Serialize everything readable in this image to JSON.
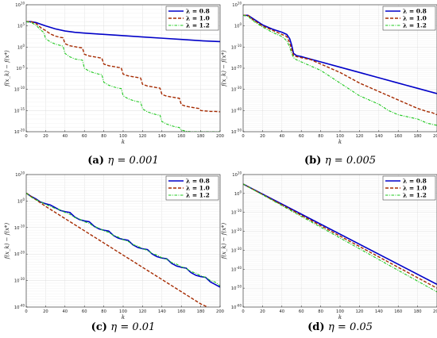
{
  "chart_data": [
    {
      "type": "line",
      "caption_label": "(a)",
      "caption_text": "η = 0.001",
      "xlabel": "k",
      "ylabel": "f(x_k) − f(x*)",
      "xlim": [
        0,
        200
      ],
      "ylim_exp": [
        -20,
        10
      ],
      "yscale": "log",
      "ytick_exps": [
        -20,
        -15,
        -10,
        -5,
        0,
        5,
        10
      ],
      "xticks": [
        0,
        20,
        40,
        60,
        80,
        100,
        120,
        140,
        160,
        180,
        200
      ],
      "grid": true,
      "legend": "top-right",
      "series": [
        {
          "name": "λ = 0.8",
          "style": "solid",
          "color": "#0000c8",
          "x": [
            0,
            5,
            10,
            15,
            20,
            30,
            40,
            50,
            60,
            80,
            100,
            120,
            140,
            160,
            180,
            200
          ],
          "log10_y": [
            6,
            6,
            5.8,
            5.4,
            5,
            4.3,
            3.8,
            3.5,
            3.3,
            3,
            2.7,
            2.4,
            2.1,
            1.8,
            1.5,
            1.3
          ]
        },
        {
          "name": "λ = 1.0",
          "style": "dashed",
          "color": "#a52a00",
          "x": [
            0,
            5,
            10,
            15,
            20,
            25,
            30,
            35,
            38,
            40,
            45,
            50,
            55,
            58,
            60,
            65,
            70,
            75,
            78,
            80,
            85,
            90,
            95,
            98,
            100,
            105,
            110,
            115,
            118,
            120,
            125,
            130,
            135,
            138,
            140,
            145,
            150,
            155,
            158,
            160,
            165,
            170,
            175,
            178,
            180,
            185,
            190,
            195,
            200
          ],
          "log10_y": [
            6,
            6,
            5.6,
            4.6,
            3.9,
            3.1,
            2.6,
            2.3,
            2.2,
            0.8,
            0.3,
            0.1,
            -0.1,
            -0.2,
            -1.7,
            -2.1,
            -2.3,
            -2.5,
            -2.6,
            -4.0,
            -4.4,
            -4.6,
            -4.8,
            -4.9,
            -6.4,
            -6.8,
            -7.0,
            -7.2,
            -7.3,
            -8.8,
            -9.2,
            -9.4,
            -9.6,
            -9.7,
            -11.2,
            -11.6,
            -11.8,
            -12.0,
            -12.1,
            -13.6,
            -14.0,
            -14.2,
            -14.4,
            -14.5,
            -15.0,
            -15.1,
            -15.2,
            -15.2,
            -15.3
          ]
        },
        {
          "name": "λ = 1.2",
          "style": "dashdot",
          "color": "#1ec81e",
          "x": [
            0,
            5,
            10,
            15,
            18,
            20,
            25,
            30,
            35,
            38,
            40,
            45,
            50,
            55,
            58,
            60,
            65,
            70,
            75,
            78,
            80,
            85,
            90,
            95,
            98,
            100,
            105,
            110,
            115,
            118,
            120,
            125,
            130,
            135,
            138,
            140,
            145,
            150,
            155,
            158,
            160,
            165,
            170,
            175,
            178,
            180,
            185,
            190,
            195,
            198,
            200
          ],
          "log10_y": [
            6,
            5.8,
            5.2,
            4.0,
            3.5,
            2.0,
            1.2,
            0.7,
            0.4,
            0.2,
            -1.5,
            -2.3,
            -2.8,
            -3.0,
            -3.1,
            -5.0,
            -5.7,
            -6.1,
            -6.4,
            -6.5,
            -8.3,
            -9.0,
            -9.4,
            -9.7,
            -9.8,
            -11.5,
            -12.2,
            -12.6,
            -12.9,
            -13.0,
            -14.6,
            -15.3,
            -15.7,
            -16.0,
            -16.1,
            -17.6,
            -18.2,
            -18.6,
            -18.9,
            -19.0,
            -19.6,
            -19.9,
            -20.0,
            -20.0,
            -20.0,
            -20.0,
            -20.0,
            -20.0,
            -20.0,
            -20.0,
            -20.0
          ]
        }
      ]
    },
    {
      "type": "line",
      "caption_label": "(b)",
      "caption_text": "η = 0.005",
      "xlabel": "k",
      "ylabel": "f(x_k) − f(x*)",
      "xlim": [
        0,
        200
      ],
      "ylim_exp": [
        -50,
        10
      ],
      "yscale": "log",
      "ytick_exps": [
        -50,
        -40,
        -30,
        -20,
        -10,
        0,
        10
      ],
      "xticks": [
        0,
        20,
        40,
        60,
        80,
        100,
        120,
        140,
        160,
        180,
        200
      ],
      "grid": true,
      "legend": "top-right",
      "series": [
        {
          "name": "λ = 0.8",
          "style": "solid",
          "color": "#0000c8",
          "x": [
            0,
            5,
            10,
            20,
            30,
            40,
            45,
            48,
            50,
            52,
            55,
            60,
            80,
            100,
            120,
            140,
            160,
            180,
            200
          ],
          "log10_y": [
            5,
            5,
            3.5,
            0.5,
            -1.5,
            -3,
            -4,
            -6,
            -9,
            -13,
            -14,
            -14.5,
            -17,
            -19.5,
            -22,
            -24.5,
            -27,
            -29.5,
            -32
          ]
        },
        {
          "name": "λ = 1.0",
          "style": "dashed",
          "color": "#a52a00",
          "x": [
            0,
            5,
            10,
            20,
            30,
            40,
            45,
            48,
            50,
            52,
            55,
            60,
            70,
            80,
            90,
            100,
            110,
            120,
            130,
            140,
            150,
            160,
            170,
            180,
            190,
            195,
            200
          ],
          "log10_y": [
            5,
            5,
            3,
            0,
            -2,
            -4,
            -5,
            -8,
            -11,
            -14,
            -14.5,
            -15,
            -16,
            -18,
            -20,
            -22,
            -24.5,
            -27,
            -29,
            -31,
            -33,
            -35,
            -37,
            -39,
            -40.5,
            -41,
            -42
          ]
        },
        {
          "name": "λ = 1.2",
          "style": "dashdot",
          "color": "#1ec81e",
          "x": [
            0,
            5,
            10,
            20,
            30,
            40,
            45,
            48,
            50,
            52,
            55,
            60,
            70,
            80,
            90,
            100,
            110,
            120,
            130,
            140,
            150,
            160,
            170,
            180,
            190,
            200
          ],
          "log10_y": [
            5,
            4.5,
            2.5,
            -0.5,
            -3,
            -5,
            -7,
            -10,
            -13,
            -15,
            -16,
            -17,
            -19,
            -21,
            -24,
            -27,
            -30,
            -33,
            -35,
            -37,
            -40,
            -42,
            -43,
            -44,
            -46,
            -47
          ]
        }
      ]
    },
    {
      "type": "line",
      "caption_label": "(c)",
      "caption_text": "η = 0.01",
      "xlabel": "k",
      "ylabel": "f(x_k) − f(x*)",
      "xlim": [
        0,
        200
      ],
      "ylim_exp": [
        -40,
        10
      ],
      "yscale": "log",
      "ytick_exps": [
        -40,
        -30,
        -20,
        -10,
        0,
        10
      ],
      "xticks": [
        0,
        20,
        40,
        60,
        80,
        100,
        120,
        140,
        160,
        180,
        200
      ],
      "grid": true,
      "legend": "top-right",
      "series": [
        {
          "name": "λ = 0.8",
          "style": "solid",
          "color": "#0000c8",
          "x": [
            0,
            5,
            10,
            15,
            20,
            25,
            30,
            35,
            40,
            45,
            50,
            55,
            60,
            65,
            70,
            75,
            80,
            85,
            90,
            95,
            100,
            105,
            110,
            115,
            120,
            125,
            130,
            135,
            140,
            145,
            150,
            155,
            160,
            165,
            170,
            175,
            180,
            185,
            190,
            195,
            200
          ],
          "log10_y": [
            3,
            1.8,
            0.8,
            -0.4,
            -1,
            -1.5,
            -2.5,
            -3.5,
            -4,
            -4.3,
            -6,
            -7,
            -7.5,
            -7.8,
            -9.5,
            -10.5,
            -11,
            -11.3,
            -13,
            -14,
            -14.5,
            -14.8,
            -16.5,
            -17.5,
            -18,
            -18.3,
            -20,
            -21,
            -21.5,
            -21.8,
            -23.5,
            -24.5,
            -25,
            -25.3,
            -27,
            -28,
            -28.5,
            -28.8,
            -30.5,
            -31.5,
            -32.5
          ]
        },
        {
          "name": "λ = 1.0",
          "style": "dashed",
          "color": "#a52a00",
          "x": [
            0,
            10,
            20,
            30,
            40,
            50,
            60,
            70,
            80,
            90,
            100,
            110,
            120,
            130,
            140,
            150,
            160,
            170,
            180,
            190,
            200
          ],
          "log10_y": [
            3,
            0.5,
            -2,
            -4.3,
            -6.6,
            -8.9,
            -11.2,
            -13.5,
            -15.8,
            -18.1,
            -20.4,
            -22.7,
            -25,
            -27.3,
            -29.6,
            -31.9,
            -34.2,
            -36.5,
            -38.8,
            -40.5,
            -42
          ]
        },
        {
          "name": "λ = 1.2",
          "style": "dashdot",
          "color": "#1ec81e",
          "x": [
            0,
            5,
            10,
            15,
            20,
            25,
            30,
            35,
            40,
            45,
            50,
            55,
            60,
            65,
            70,
            75,
            80,
            85,
            90,
            95,
            100,
            105,
            110,
            115,
            120,
            125,
            130,
            135,
            140,
            145,
            150,
            155,
            160,
            165,
            170,
            175,
            180,
            185,
            190,
            195,
            200
          ],
          "log10_y": [
            3,
            1.5,
            0.5,
            -0.3,
            -1.3,
            -2,
            -2.8,
            -3.3,
            -4.3,
            -5,
            -6.2,
            -6.8,
            -7.8,
            -8.4,
            -9.6,
            -10.2,
            -11.2,
            -11.8,
            -13,
            -13.6,
            -14.6,
            -15.2,
            -16.4,
            -17,
            -18,
            -18.6,
            -19.8,
            -20.4,
            -21.4,
            -22,
            -23.2,
            -23.8,
            -24.8,
            -25.4,
            -26.6,
            -27.2,
            -28.2,
            -28.8,
            -30,
            -30.6,
            -32
          ]
        }
      ]
    },
    {
      "type": "line",
      "caption_label": "(d)",
      "caption_text": "η = 0.05",
      "xlabel": "k",
      "ylabel": "f(x_k) − f(x*)",
      "xlim": [
        0,
        200
      ],
      "ylim_exp": [
        -60,
        10
      ],
      "yscale": "log",
      "ytick_exps": [
        -60,
        -50,
        -40,
        -30,
        -20,
        -10,
        0,
        10
      ],
      "xticks": [
        0,
        20,
        40,
        60,
        80,
        100,
        120,
        140,
        160,
        180,
        200
      ],
      "grid": true,
      "legend": "top-right",
      "series": [
        {
          "name": "λ = 0.8",
          "style": "solid",
          "color": "#0000c8",
          "x": [
            0,
            200
          ],
          "log10_y": [
            5,
            -48
          ]
        },
        {
          "name": "λ = 1.0",
          "style": "dashed",
          "color": "#a52a00",
          "x": [
            0,
            200
          ],
          "log10_y": [
            5,
            -50
          ]
        },
        {
          "name": "λ = 1.2",
          "style": "dashdot",
          "color": "#1ec81e",
          "x": [
            0,
            200
          ],
          "log10_y": [
            5,
            -52
          ]
        }
      ]
    }
  ]
}
